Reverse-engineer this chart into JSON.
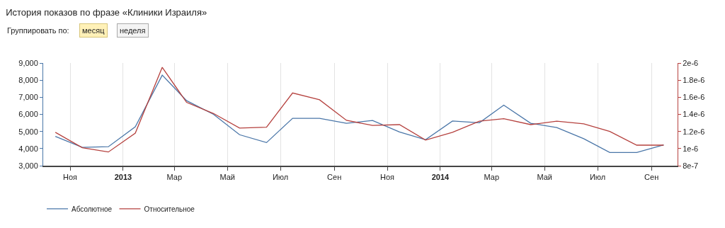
{
  "chart_data": {
    "type": "line",
    "title": "История показов по фразе «Клиники Израиля»",
    "annotations": [
      "Группировать по:",
      "месяц",
      "неделя"
    ],
    "x": [
      "2012-10-15",
      "2012-11-15",
      "2012-12-15",
      "2013-01-15",
      "2013-02-15",
      "2013-03-15",
      "2013-04-15",
      "2013-05-15",
      "2013-06-15",
      "2013-07-15",
      "2013-08-15",
      "2013-09-15",
      "2013-10-15",
      "2013-11-15",
      "2013-12-15",
      "2014-01-15",
      "2014-02-15",
      "2014-03-15",
      "2014-04-15",
      "2014-05-15",
      "2014-06-15",
      "2014-07-15",
      "2014-08-15",
      "2014-09-15"
    ],
    "series": [
      {
        "name": "Абсолютное",
        "color": "#4a76a8",
        "values": [
          4710,
          4070,
          4110,
          5270,
          8290,
          6800,
          6000,
          4810,
          4350,
          5770,
          5770,
          5480,
          5640,
          4970,
          4520,
          5610,
          5510,
          6540,
          5480,
          5230,
          4580,
          3770,
          3770,
          4220
        ]
      },
      {
        "name": "Относительное",
        "color": "#b5413e",
        "axis": "y2",
        "values": [
          1.19e-06,
          1.01e-06,
          9.6e-07,
          1.18e-06,
          1.95e-06,
          1.54e-06,
          1.41e-06,
          1.24e-06,
          1.25e-06,
          1.65e-06,
          1.57e-06,
          1.33e-06,
          1.27e-06,
          1.28e-06,
          1.1e-06,
          1.19e-06,
          1.32e-06,
          1.35e-06,
          1.28e-06,
          1.32e-06,
          1.29e-06,
          1.2e-06,
          1.04e-06,
          1.04e-06
        ]
      }
    ],
    "xlim": [
      "2012-10-01",
      "2014-10-01"
    ],
    "xticks": [
      {
        "value": "2012-11-01",
        "label": "Ноя"
      },
      {
        "value": "2013-01-01",
        "label": "2013"
      },
      {
        "value": "2013-03-01",
        "label": "Мар"
      },
      {
        "value": "2013-05-01",
        "label": "Май"
      },
      {
        "value": "2013-07-01",
        "label": "Июл"
      },
      {
        "value": "2013-09-01",
        "label": "Сен"
      },
      {
        "value": "2013-11-01",
        "label": "Ноя"
      },
      {
        "value": "2014-01-01",
        "label": "2014"
      },
      {
        "value": "2014-03-01",
        "label": "Мар"
      },
      {
        "value": "2014-05-01",
        "label": "Май"
      },
      {
        "value": "2014-07-01",
        "label": "Июл"
      },
      {
        "value": "2014-09-01",
        "label": "Сен"
      }
    ],
    "ylim": [
      3000,
      9000
    ],
    "yticks": [
      {
        "value": 3000,
        "label": "3,000"
      },
      {
        "value": 4000,
        "label": "4,000"
      },
      {
        "value": 5000,
        "label": "5,000"
      },
      {
        "value": 6000,
        "label": "6,000"
      },
      {
        "value": 7000,
        "label": "7,000"
      },
      {
        "value": 8000,
        "label": "8,000"
      },
      {
        "value": 9000,
        "label": "9,000"
      }
    ],
    "y2lim": [
      8e-07,
      2e-06
    ],
    "y2ticks": [
      {
        "value": 8e-07,
        "label": "8e-7"
      },
      {
        "value": 1e-06,
        "label": "1e-6"
      },
      {
        "value": 1.2e-06,
        "label": "1.2e-6"
      },
      {
        "value": 1.4e-06,
        "label": "1.4e-6"
      },
      {
        "value": 1.6e-06,
        "label": "1.6e-6"
      },
      {
        "value": 1.8e-06,
        "label": "1.8e-6"
      },
      {
        "value": 2e-06,
        "label": "2e-6"
      }
    ],
    "grid": "x",
    "legend": "bottom left",
    "marker": "none",
    "line_style": "solid"
  }
}
